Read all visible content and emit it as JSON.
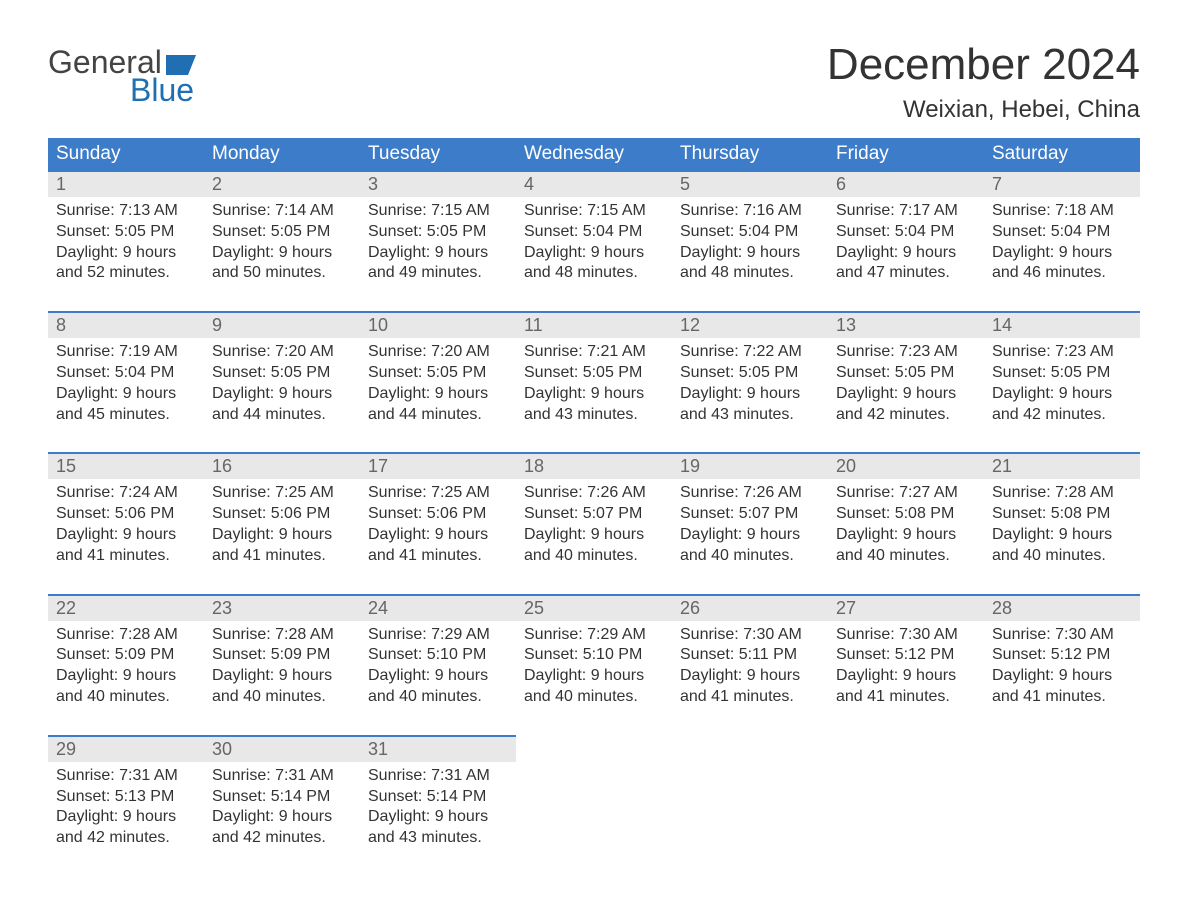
{
  "logo": {
    "word1": "General",
    "word2": "Blue",
    "accent_color": "#1f6fb2",
    "text_color": "#444444"
  },
  "title": "December 2024",
  "location": "Weixian, Hebei, China",
  "colors": {
    "header_bg": "#3d7cc9",
    "header_text": "#ffffff",
    "daynum_bg": "#e8e8e8",
    "daynum_border": "#3d7cc9",
    "daynum_text": "#666666",
    "body_text": "#333333",
    "page_bg": "#ffffff"
  },
  "typography": {
    "title_fontsize": 44,
    "location_fontsize": 24,
    "dow_fontsize": 19,
    "daynum_fontsize": 18,
    "detail_fontsize": 16,
    "font_family": "Arial, Helvetica, sans-serif"
  },
  "days_of_week": [
    "Sunday",
    "Monday",
    "Tuesday",
    "Wednesday",
    "Thursday",
    "Friday",
    "Saturday"
  ],
  "labels": {
    "sunrise": "Sunrise:",
    "sunset": "Sunset:",
    "daylight": "Daylight:"
  },
  "weeks": [
    [
      {
        "n": "1",
        "sunrise": "7:13 AM",
        "sunset": "5:05 PM",
        "daylight1": "9 hours",
        "daylight2": "and 52 minutes."
      },
      {
        "n": "2",
        "sunrise": "7:14 AM",
        "sunset": "5:05 PM",
        "daylight1": "9 hours",
        "daylight2": "and 50 minutes."
      },
      {
        "n": "3",
        "sunrise": "7:15 AM",
        "sunset": "5:05 PM",
        "daylight1": "9 hours",
        "daylight2": "and 49 minutes."
      },
      {
        "n": "4",
        "sunrise": "7:15 AM",
        "sunset": "5:04 PM",
        "daylight1": "9 hours",
        "daylight2": "and 48 minutes."
      },
      {
        "n": "5",
        "sunrise": "7:16 AM",
        "sunset": "5:04 PM",
        "daylight1": "9 hours",
        "daylight2": "and 48 minutes."
      },
      {
        "n": "6",
        "sunrise": "7:17 AM",
        "sunset": "5:04 PM",
        "daylight1": "9 hours",
        "daylight2": "and 47 minutes."
      },
      {
        "n": "7",
        "sunrise": "7:18 AM",
        "sunset": "5:04 PM",
        "daylight1": "9 hours",
        "daylight2": "and 46 minutes."
      }
    ],
    [
      {
        "n": "8",
        "sunrise": "7:19 AM",
        "sunset": "5:04 PM",
        "daylight1": "9 hours",
        "daylight2": "and 45 minutes."
      },
      {
        "n": "9",
        "sunrise": "7:20 AM",
        "sunset": "5:05 PM",
        "daylight1": "9 hours",
        "daylight2": "and 44 minutes."
      },
      {
        "n": "10",
        "sunrise": "7:20 AM",
        "sunset": "5:05 PM",
        "daylight1": "9 hours",
        "daylight2": "and 44 minutes."
      },
      {
        "n": "11",
        "sunrise": "7:21 AM",
        "sunset": "5:05 PM",
        "daylight1": "9 hours",
        "daylight2": "and 43 minutes."
      },
      {
        "n": "12",
        "sunrise": "7:22 AM",
        "sunset": "5:05 PM",
        "daylight1": "9 hours",
        "daylight2": "and 43 minutes."
      },
      {
        "n": "13",
        "sunrise": "7:23 AM",
        "sunset": "5:05 PM",
        "daylight1": "9 hours",
        "daylight2": "and 42 minutes."
      },
      {
        "n": "14",
        "sunrise": "7:23 AM",
        "sunset": "5:05 PM",
        "daylight1": "9 hours",
        "daylight2": "and 42 minutes."
      }
    ],
    [
      {
        "n": "15",
        "sunrise": "7:24 AM",
        "sunset": "5:06 PM",
        "daylight1": "9 hours",
        "daylight2": "and 41 minutes."
      },
      {
        "n": "16",
        "sunrise": "7:25 AM",
        "sunset": "5:06 PM",
        "daylight1": "9 hours",
        "daylight2": "and 41 minutes."
      },
      {
        "n": "17",
        "sunrise": "7:25 AM",
        "sunset": "5:06 PM",
        "daylight1": "9 hours",
        "daylight2": "and 41 minutes."
      },
      {
        "n": "18",
        "sunrise": "7:26 AM",
        "sunset": "5:07 PM",
        "daylight1": "9 hours",
        "daylight2": "and 40 minutes."
      },
      {
        "n": "19",
        "sunrise": "7:26 AM",
        "sunset": "5:07 PM",
        "daylight1": "9 hours",
        "daylight2": "and 40 minutes."
      },
      {
        "n": "20",
        "sunrise": "7:27 AM",
        "sunset": "5:08 PM",
        "daylight1": "9 hours",
        "daylight2": "and 40 minutes."
      },
      {
        "n": "21",
        "sunrise": "7:28 AM",
        "sunset": "5:08 PM",
        "daylight1": "9 hours",
        "daylight2": "and 40 minutes."
      }
    ],
    [
      {
        "n": "22",
        "sunrise": "7:28 AM",
        "sunset": "5:09 PM",
        "daylight1": "9 hours",
        "daylight2": "and 40 minutes."
      },
      {
        "n": "23",
        "sunrise": "7:28 AM",
        "sunset": "5:09 PM",
        "daylight1": "9 hours",
        "daylight2": "and 40 minutes."
      },
      {
        "n": "24",
        "sunrise": "7:29 AM",
        "sunset": "5:10 PM",
        "daylight1": "9 hours",
        "daylight2": "and 40 minutes."
      },
      {
        "n": "25",
        "sunrise": "7:29 AM",
        "sunset": "5:10 PM",
        "daylight1": "9 hours",
        "daylight2": "and 40 minutes."
      },
      {
        "n": "26",
        "sunrise": "7:30 AM",
        "sunset": "5:11 PM",
        "daylight1": "9 hours",
        "daylight2": "and 41 minutes."
      },
      {
        "n": "27",
        "sunrise": "7:30 AM",
        "sunset": "5:12 PM",
        "daylight1": "9 hours",
        "daylight2": "and 41 minutes."
      },
      {
        "n": "28",
        "sunrise": "7:30 AM",
        "sunset": "5:12 PM",
        "daylight1": "9 hours",
        "daylight2": "and 41 minutes."
      }
    ],
    [
      {
        "n": "29",
        "sunrise": "7:31 AM",
        "sunset": "5:13 PM",
        "daylight1": "9 hours",
        "daylight2": "and 42 minutes."
      },
      {
        "n": "30",
        "sunrise": "7:31 AM",
        "sunset": "5:14 PM",
        "daylight1": "9 hours",
        "daylight2": "and 42 minutes."
      },
      {
        "n": "31",
        "sunrise": "7:31 AM",
        "sunset": "5:14 PM",
        "daylight1": "9 hours",
        "daylight2": "and 43 minutes."
      },
      null,
      null,
      null,
      null
    ]
  ]
}
